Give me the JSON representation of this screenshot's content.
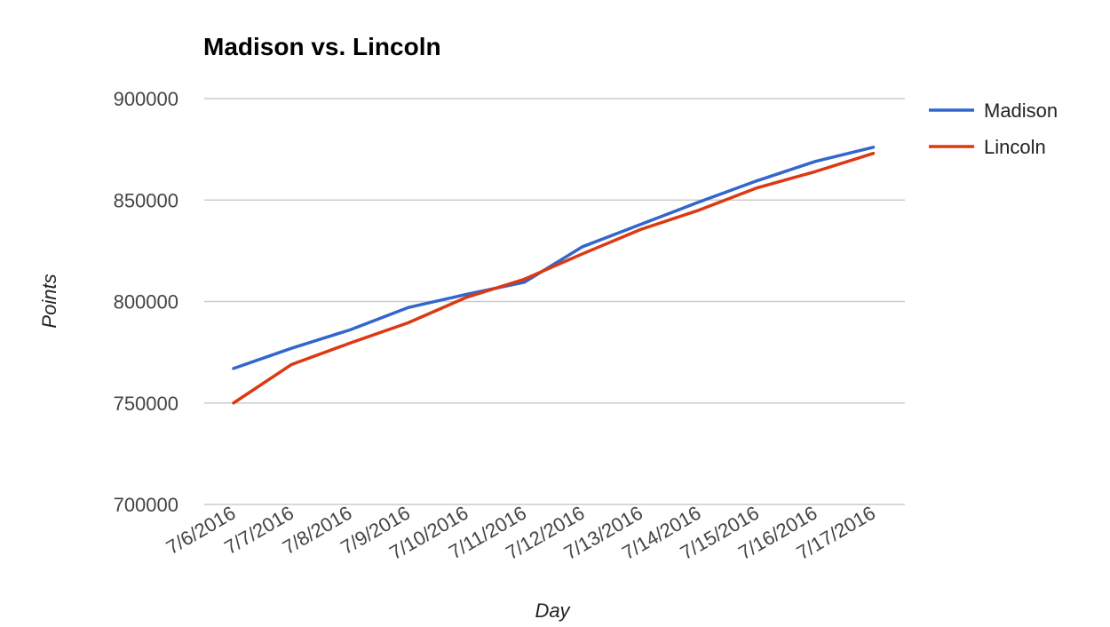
{
  "chart_data": {
    "type": "line",
    "title": "Madison vs. Lincoln",
    "xlabel": "Day",
    "ylabel": "Points",
    "categories": [
      "7/6/2016",
      "7/7/2016",
      "7/8/2016",
      "7/9/2016",
      "7/10/2016",
      "7/11/2016",
      "7/12/2016",
      "7/13/2016",
      "7/14/2016",
      "7/15/2016",
      "7/16/2016",
      "7/17/2016"
    ],
    "yticks": [
      "700000",
      "750000",
      "800000",
      "850000",
      "900000"
    ],
    "ylim": [
      700000,
      900000
    ],
    "grid": true,
    "legend_position": "right",
    "series": [
      {
        "name": "Madison",
        "color": "#3366cc",
        "values": [
          767000,
          777000,
          786000,
          797000,
          803500,
          809500,
          827000,
          838000,
          849000,
          859500,
          869000,
          876000
        ]
      },
      {
        "name": "Lincoln",
        "color": "#dc3912",
        "values": [
          750000,
          769000,
          779500,
          789500,
          802000,
          811000,
          823500,
          835500,
          845000,
          856000,
          864000,
          873000
        ]
      }
    ]
  }
}
